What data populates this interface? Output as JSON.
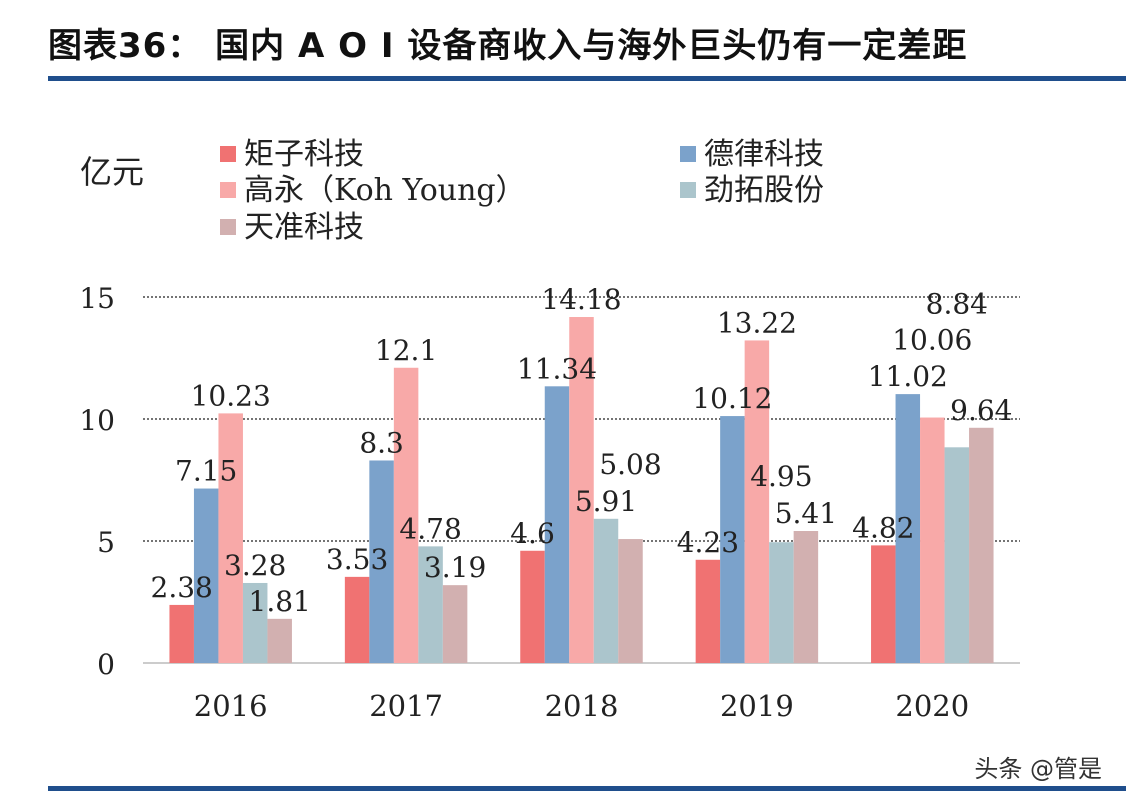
{
  "title": "图表36： 国内 A O I 设备商收入与海外巨头仍有一定差距",
  "watermark": "头条 @管是",
  "chart_data": {
    "type": "bar",
    "title": "",
    "ylabel": "亿元",
    "xlabel": "",
    "ylim": [
      0,
      15
    ],
    "yticks": [
      0,
      5,
      10,
      15
    ],
    "grid": true,
    "legend_placement": "top",
    "categories": [
      "2016",
      "2017",
      "2018",
      "2019",
      "2020"
    ],
    "series": [
      {
        "name": "矩子科技",
        "color": "#f07272",
        "values": [
          2.38,
          3.53,
          4.6,
          4.23,
          4.82
        ]
      },
      {
        "name": "德律科技",
        "color": "#7ba2cb",
        "values": [
          7.15,
          8.3,
          11.34,
          10.12,
          11.02
        ]
      },
      {
        "name": "高永（Koh Young）",
        "color": "#f8a9a8",
        "values": [
          10.23,
          12.1,
          14.18,
          13.22,
          10.06
        ]
      },
      {
        "name": "劲拓股份",
        "color": "#abc5cc",
        "values": [
          3.28,
          4.78,
          5.91,
          4.95,
          8.84
        ]
      },
      {
        "name": "天准科技",
        "color": "#d2b0b0",
        "values": [
          1.81,
          3.19,
          5.08,
          5.41,
          9.64
        ]
      }
    ]
  }
}
